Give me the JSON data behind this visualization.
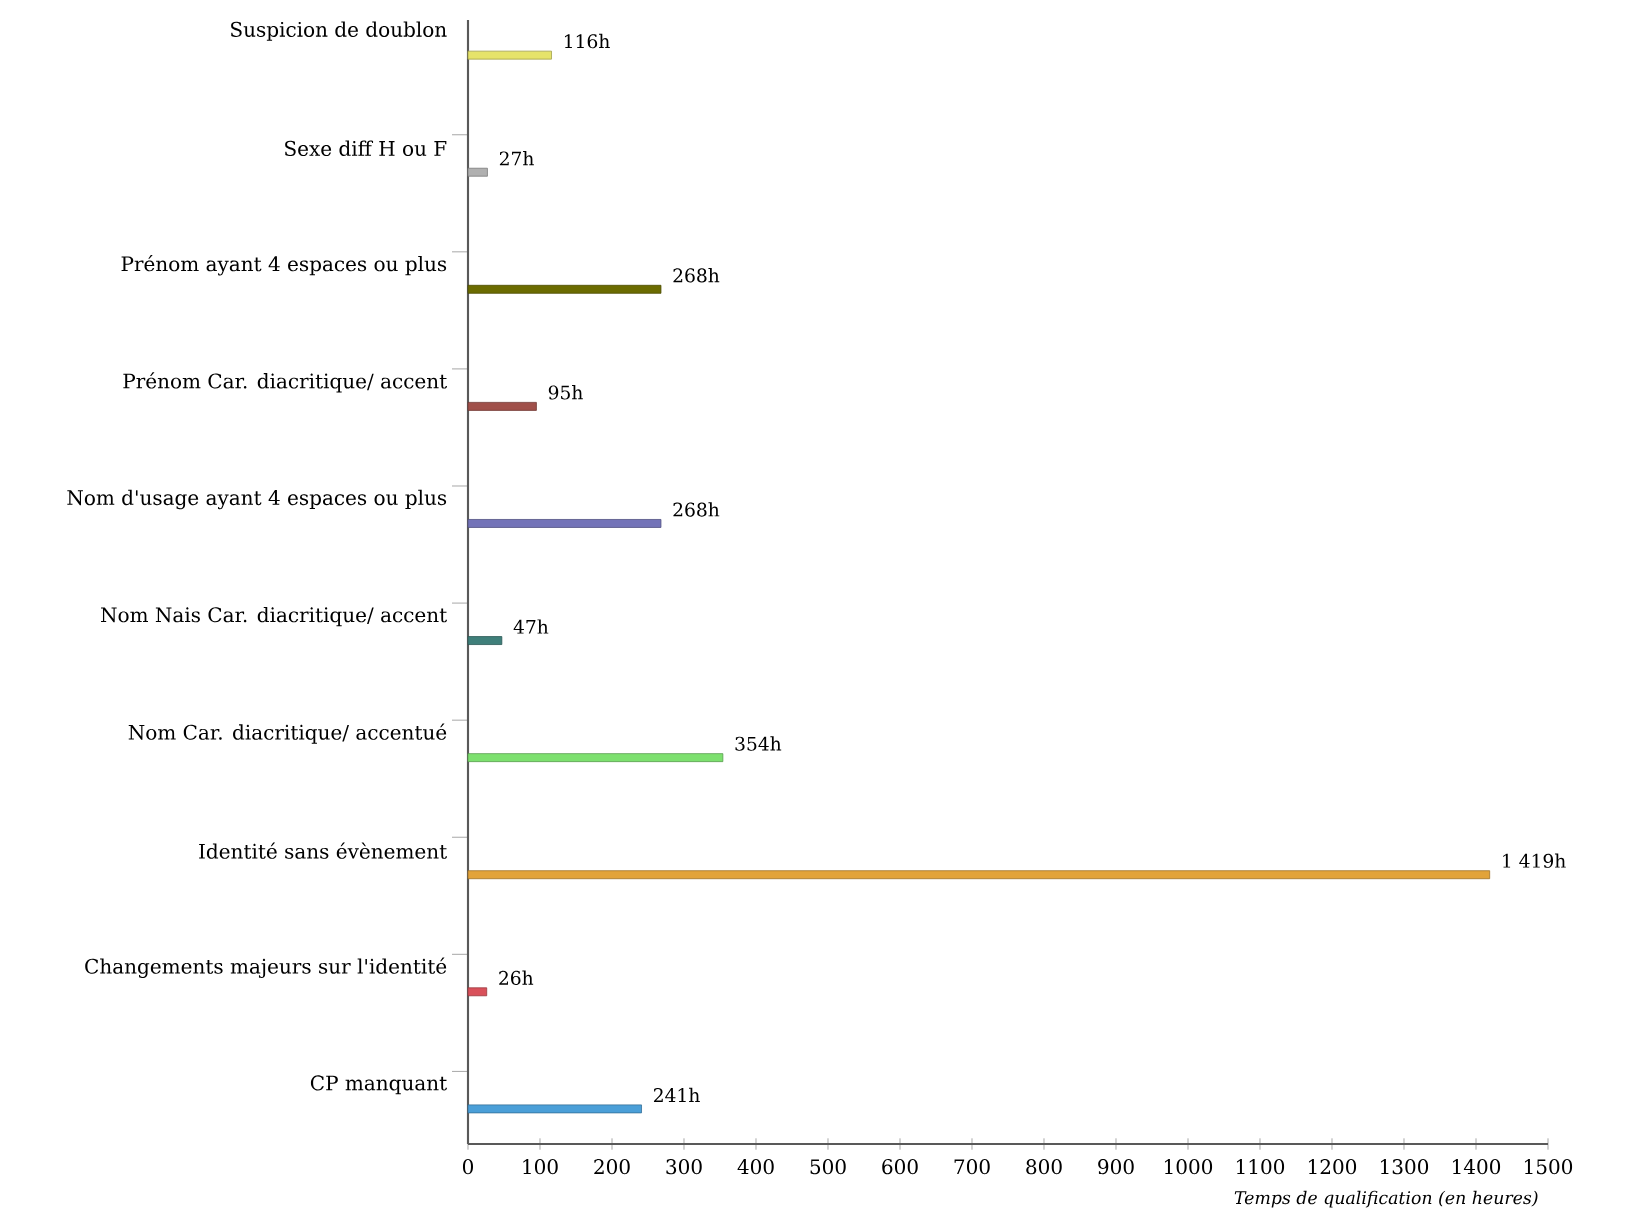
{
  "chart_data": {
    "type": "bar",
    "orientation": "horizontal",
    "xlabel": "Temps de qualification (en heures)",
    "categories": [
      "Suspicion de doublon",
      "Sexe diff H ou F",
      "Prénom ayant 4 espaces ou plus",
      "Prénom Car. diacritique/ accent",
      "Nom d'usage ayant 4 espaces ou plus",
      "Nom Nais Car. diacritique/ accent",
      "Nom Car. diacritique/ accentué",
      "Identité sans évènement",
      "Changements majeurs sur l'identité",
      "CP manquant"
    ],
    "values": [
      116,
      27,
      268,
      95,
      268,
      47,
      354,
      1419,
      26,
      241
    ],
    "value_labels": [
      "116h",
      "27h",
      "268h",
      "95h",
      "268h",
      "47h",
      "354h",
      "1 419h",
      "26h",
      "241h"
    ],
    "colors": [
      "#e6e36a",
      "#b0b0b0",
      "#6b6b00",
      "#a0504a",
      "#7373b8",
      "#3f7f7a",
      "#7de06f",
      "#e2a33a",
      "#d9505a",
      "#4a9fd8"
    ],
    "xlim": [
      0,
      1500
    ],
    "xticks": [
      0,
      100,
      200,
      300,
      400,
      500,
      600,
      700,
      800,
      900,
      1000,
      1100,
      1200,
      1300,
      1400,
      1500
    ],
    "grid": false
  }
}
